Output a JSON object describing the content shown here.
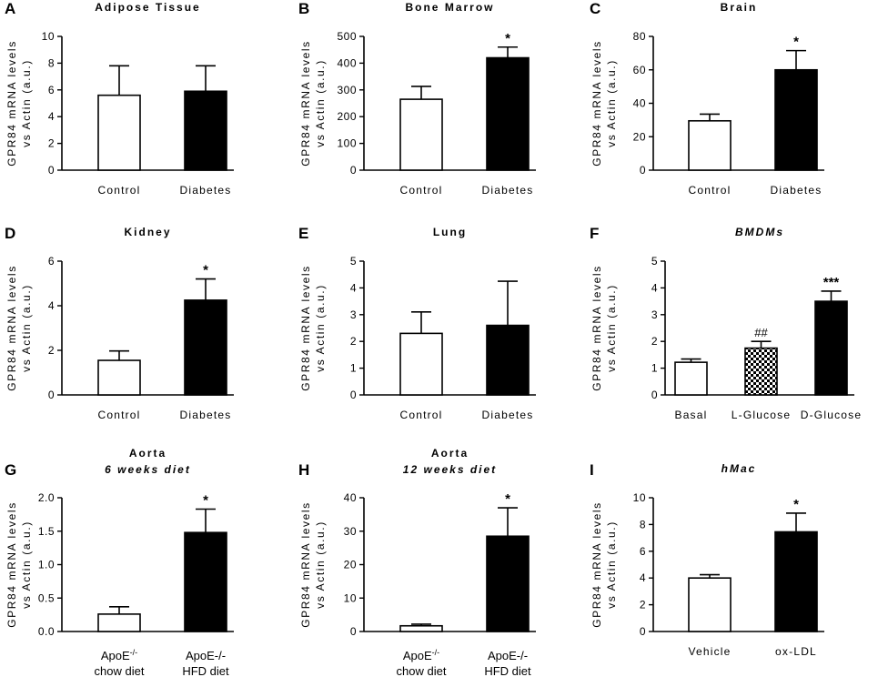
{
  "chart_data": [
    {
      "id": "A",
      "type": "bar",
      "title": "Adipose Tissue",
      "title_style": "bold",
      "ylabel": [
        "GPR84 mRNA levels",
        "vs Actin (a.u.)"
      ],
      "ylim": [
        0,
        10
      ],
      "yticks": [
        0,
        2,
        4,
        6,
        8,
        10
      ],
      "categories": [
        "Control",
        "Diabetes"
      ],
      "values": [
        5.6,
        5.9
      ],
      "errors": [
        2.2,
        1.9
      ],
      "fills": [
        "white",
        "black"
      ],
      "significance": [
        "",
        ""
      ]
    },
    {
      "id": "B",
      "type": "bar",
      "title": "Bone Marrow",
      "title_style": "bold",
      "ylabel": [
        "GPR84 mRNA levels",
        "vs Actin (a.u.)"
      ],
      "ylim": [
        0,
        500
      ],
      "yticks": [
        0,
        100,
        200,
        300,
        400,
        500
      ],
      "categories": [
        "Control",
        "Diabetes"
      ],
      "values": [
        265,
        420
      ],
      "errors": [
        48,
        40
      ],
      "fills": [
        "white",
        "black"
      ],
      "significance": [
        "",
        "*"
      ]
    },
    {
      "id": "C",
      "type": "bar",
      "title": "Brain",
      "title_style": "bold",
      "ylabel": [
        "GPR84 mRNA levels",
        "vs Actin (a.u.)"
      ],
      "ylim": [
        0,
        80
      ],
      "yticks": [
        0,
        20,
        40,
        60,
        80
      ],
      "categories": [
        "Control",
        "Diabetes"
      ],
      "values": [
        29.5,
        60
      ],
      "errors": [
        4,
        11.5
      ],
      "fills": [
        "white",
        "black"
      ],
      "significance": [
        "",
        "*"
      ]
    },
    {
      "id": "D",
      "type": "bar",
      "title": "Kidney",
      "title_style": "bold",
      "ylabel": [
        "GPR84 mRNA levels",
        "vs Actin (a.u.)"
      ],
      "ylim": [
        0,
        6
      ],
      "yticks": [
        0,
        2,
        4,
        6
      ],
      "categories": [
        "Control",
        "Diabetes"
      ],
      "values": [
        1.55,
        4.25
      ],
      "errors": [
        0.42,
        0.95
      ],
      "fills": [
        "white",
        "black"
      ],
      "significance": [
        "",
        "*"
      ]
    },
    {
      "id": "E",
      "type": "bar",
      "title": "Lung",
      "title_style": "bold",
      "ylabel": [
        "GPR84 mRNA levels",
        "vs Actin (a.u.)"
      ],
      "ylim": [
        0,
        5
      ],
      "yticks": [
        0,
        1,
        2,
        3,
        4,
        5
      ],
      "categories": [
        "Control",
        "Diabetes"
      ],
      "values": [
        2.3,
        2.6
      ],
      "errors": [
        0.8,
        1.65
      ],
      "fills": [
        "white",
        "black"
      ],
      "significance": [
        "",
        ""
      ]
    },
    {
      "id": "F",
      "type": "bar",
      "title": "BMDMs",
      "title_style": "bold-italic",
      "ylabel": [
        "GPR84 mRNA levels",
        "vs Actin (a.u.)"
      ],
      "ylim": [
        0,
        5
      ],
      "yticks": [
        0,
        1,
        2,
        3,
        4,
        5
      ],
      "categories": [
        "Basal",
        "L-Glucose",
        "D-Glucose"
      ],
      "values": [
        1.22,
        1.75,
        3.5
      ],
      "errors": [
        0.12,
        0.25,
        0.38
      ],
      "fills": [
        "white",
        "checker",
        "black"
      ],
      "significance": [
        "",
        "##",
        "***"
      ]
    },
    {
      "id": "G",
      "type": "bar",
      "title": "Aorta",
      "subtitle": "6 weeks diet",
      "title_style": "bold",
      "ylabel": [
        "GPR84 mRNA levels",
        "vs Actin (a.u.)"
      ],
      "ylim": [
        0,
        2.0
      ],
      "yticks": [
        0,
        0.5,
        1.0,
        1.5,
        2.0
      ],
      "ytick_labels": [
        "0.0",
        "0.5",
        "1.0",
        "1.5",
        "2.0"
      ],
      "categories": [
        [
          "ApoE",
          "-/-",
          "chow diet"
        ],
        [
          "ApoE-/-",
          "",
          "HFD diet"
        ]
      ],
      "values": [
        0.26,
        1.48
      ],
      "errors": [
        0.11,
        0.35
      ],
      "fills": [
        "white",
        "black"
      ],
      "significance": [
        "",
        "*"
      ]
    },
    {
      "id": "H",
      "type": "bar",
      "title": "Aorta",
      "subtitle": "12 weeks diet",
      "title_style": "bold",
      "ylabel": [
        "GPR84 mRNA levels",
        "vs Actin (a.u.)"
      ],
      "ylim": [
        0,
        40
      ],
      "yticks": [
        0,
        10,
        20,
        30,
        40
      ],
      "categories": [
        [
          "ApoE",
          "-/-",
          "chow diet"
        ],
        [
          "ApoE-/-",
          "",
          "HFD diet"
        ]
      ],
      "values": [
        1.7,
        28.5
      ],
      "errors": [
        0.5,
        8.5
      ],
      "fills": [
        "white",
        "black"
      ],
      "significance": [
        "",
        "*"
      ]
    },
    {
      "id": "I",
      "type": "bar",
      "title": "hMac",
      "title_style": "bold-italic",
      "ylabel": [
        "GPR84 mRNA levels",
        "vs Actin (a.u.)"
      ],
      "ylim": [
        0,
        10
      ],
      "yticks": [
        0,
        2,
        4,
        6,
        8,
        10
      ],
      "categories": [
        "Vehicle",
        "ox-LDL"
      ],
      "values": [
        4.0,
        7.45
      ],
      "errors": [
        0.25,
        1.4
      ],
      "fills": [
        "white",
        "black"
      ],
      "significance": [
        "",
        "*"
      ]
    }
  ]
}
